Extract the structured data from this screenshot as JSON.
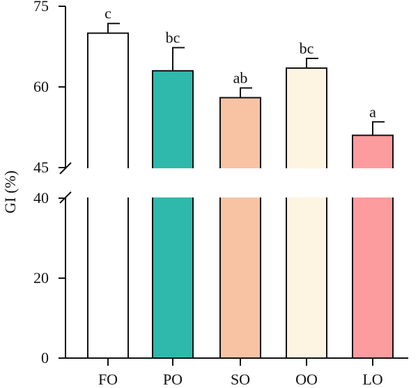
{
  "chart_data": {
    "type": "bar",
    "title": "",
    "xlabel": "",
    "ylabel": "GI (%)",
    "axis_break": {
      "lower_range": [
        0,
        40
      ],
      "upper_range": [
        45,
        75
      ]
    },
    "y_ticks": [
      {
        "value": 0,
        "label": "0"
      },
      {
        "value": 20,
        "label": "20"
      },
      {
        "value": 40,
        "label": "40"
      },
      {
        "value": 45,
        "label": "45"
      },
      {
        "value": 60,
        "label": "60"
      },
      {
        "value": 75,
        "label": "75"
      }
    ],
    "categories": [
      "FO",
      "PO",
      "SO",
      "OO",
      "LO"
    ],
    "values": [
      70.0,
      63.0,
      58.0,
      63.5,
      51.0
    ],
    "errors": [
      1.8,
      4.3,
      1.8,
      1.8,
      2.5
    ],
    "significance": [
      "c",
      "bc",
      "ab",
      "bc",
      "a"
    ],
    "colors": [
      "#ffffff",
      "#2fb8ac",
      "#f7c3a3",
      "#fdf4e2",
      "#fc9c9e"
    ],
    "grid": false,
    "legend": "none"
  }
}
